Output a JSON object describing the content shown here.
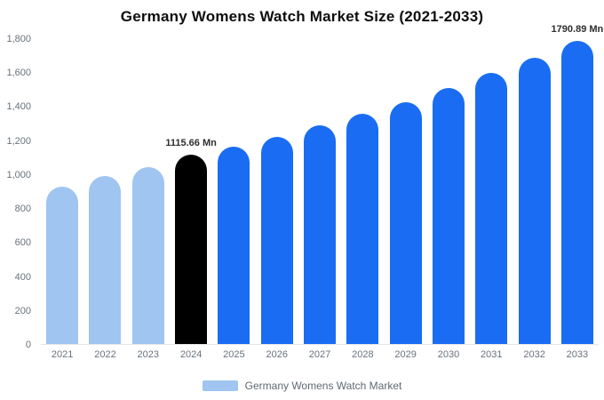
{
  "chart_data": {
    "type": "bar",
    "title": "Germany Womens Watch Market Size (2021-2033)",
    "categories": [
      "2021",
      "2022",
      "2023",
      "2024",
      "2025",
      "2026",
      "2027",
      "2028",
      "2029",
      "2030",
      "2031",
      "2032",
      "2033"
    ],
    "values": [
      930,
      990,
      1045,
      1115.66,
      1165,
      1225,
      1290,
      1360,
      1430,
      1510,
      1600,
      1690,
      1790.89
    ],
    "unit": "Mn",
    "bar_colors": [
      "#9fc5f0",
      "#9fc5f0",
      "#9fc5f0",
      "#000000",
      "#1a6df2",
      "#1a6df2",
      "#1a6df2",
      "#1a6df2",
      "#1a6df2",
      "#1a6df2",
      "#1a6df2",
      "#1a6df2",
      "#1a6df2"
    ],
    "annotations": {
      "2024": "1115.66 Mn",
      "2033": "1790.89 Mn"
    },
    "ylim": [
      0,
      1800
    ],
    "yticks": [
      "1,800",
      "1,600",
      "1,400",
      "1,200",
      "1,000",
      "800",
      "600",
      "400",
      "200",
      "0"
    ],
    "grid": false,
    "legend_position": "bottom",
    "legend": [
      {
        "label": "Germany Womens Watch Market",
        "color": "#9fc5f0"
      }
    ]
  }
}
